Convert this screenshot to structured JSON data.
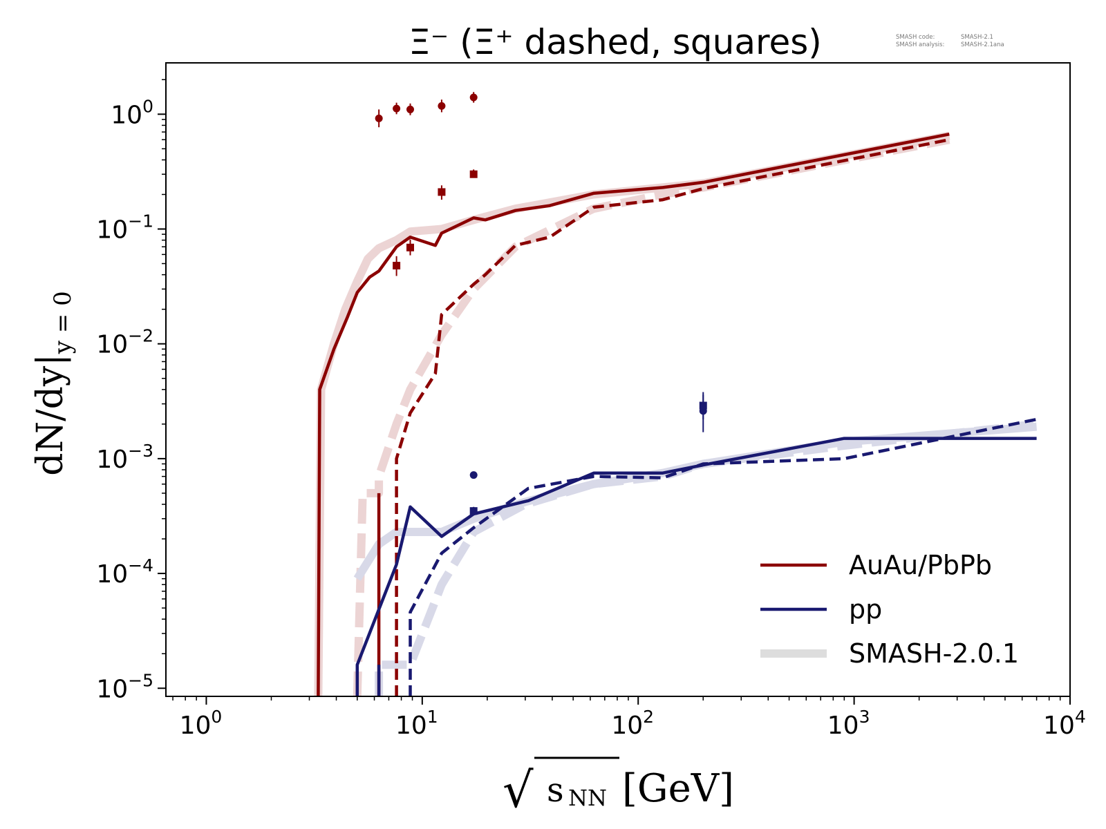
{
  "chart_data": {
    "type": "line",
    "title": "Ξ⁻ (Ξ⁺ dashed, squares)",
    "version_box": {
      "line1_label": "SMASH code:",
      "line1_value": "SMASH-2.1",
      "line2_label": "SMASH analysis:",
      "line2_value": "SMASH-2.1ana"
    },
    "xlabel": {
      "sqrt": "√",
      "base": "s",
      "sub": "NN",
      "unit": "[GeV]"
    },
    "ylabel": {
      "main": "dN/dy|",
      "sub": "y = 0"
    },
    "xscale": "log",
    "yscale": "log",
    "xlim": [
      0.65,
      10000
    ],
    "ylim": [
      8.5e-06,
      2.8
    ],
    "xticks": [
      {
        "value": 1,
        "base": "10",
        "exp": "0"
      },
      {
        "value": 10,
        "base": "10",
        "exp": "1"
      },
      {
        "value": 100,
        "base": "10",
        "exp": "2"
      },
      {
        "value": 1000,
        "base": "10",
        "exp": "3"
      },
      {
        "value": 10000,
        "base": "10",
        "exp": "4"
      }
    ],
    "yticks": [
      {
        "value": 1,
        "base": "10",
        "exp": "0"
      },
      {
        "value": 0.1,
        "base": "10",
        "exp": "−1"
      },
      {
        "value": 0.01,
        "base": "10",
        "exp": "−2"
      },
      {
        "value": 0.001,
        "base": "10",
        "exp": "−3"
      },
      {
        "value": 0.0001,
        "base": "10",
        "exp": "−4"
      },
      {
        "value": 1e-05,
        "base": "10",
        "exp": "−5"
      }
    ],
    "colors": {
      "auau": "#8b0000",
      "pp": "#191970",
      "ref_auau": "#ecd4d4",
      "ref_pp": "#d8d9e8",
      "ref_legend": "#dddddd"
    },
    "legend": {
      "position": "lower-right",
      "entries": [
        {
          "label": "AuAu/PbPb",
          "style": "auau"
        },
        {
          "label": "pp",
          "style": "pp"
        },
        {
          "label": "SMASH-2.0.1",
          "style": "ref"
        }
      ]
    },
    "series": [
      {
        "name": "SMASH-2.0.1 AuAu/PbPb Ξ⁻",
        "style": "ref_auau",
        "dashed": false,
        "x": [
          3.3,
          3.4,
          3.9,
          4.4,
          5.0,
          5.6,
          6.3,
          7.6,
          8.8,
          12.3,
          17.3,
          27,
          62,
          130,
          200,
          2760
        ],
        "y": [
          8.5e-06,
          0.004,
          0.01,
          0.02,
          0.035,
          0.055,
          0.068,
          0.08,
          0.095,
          0.1,
          0.12,
          0.15,
          0.2,
          0.23,
          0.25,
          0.65
        ]
      },
      {
        "name": "SMASH-2.0.1 AuAu/PbPb Ξ⁺",
        "style": "ref_auau",
        "dashed": true,
        "x": [
          5.0,
          5.3,
          5.6,
          6.3,
          6.3,
          7.6,
          8.8,
          12.3,
          17.3,
          27,
          62,
          130,
          200,
          2760
        ],
        "y": [
          8.5e-06,
          0.0005,
          0.0005,
          0.0005,
          0.0007,
          0.002,
          0.004,
          0.012,
          0.03,
          0.07,
          0.15,
          0.2,
          0.23,
          0.6
        ]
      },
      {
        "name": "SMASH-2.0.1 pp Ξ⁻",
        "style": "ref_pp",
        "dashed": false,
        "x": [
          5.0,
          6.3,
          7.6,
          8.8,
          12.3,
          17.3,
          30,
          62,
          130,
          200,
          900,
          7000
        ],
        "y": [
          9e-05,
          0.00018,
          0.00023,
          0.00023,
          0.00023,
          0.0003,
          0.00042,
          0.0006,
          0.00075,
          0.0009,
          0.0014,
          0.0019
        ]
      },
      {
        "name": "SMASH-2.0.1 pp Ξ⁺",
        "style": "ref_pp",
        "dashed": true,
        "x": [
          6.3,
          6.3,
          8.8,
          12.3,
          17.3,
          30,
          62,
          130,
          200,
          900,
          7000
        ],
        "y": [
          8.5e-06,
          1.6e-05,
          1.6e-05,
          8e-05,
          0.00023,
          0.0004,
          0.0006,
          0.0007,
          0.0009,
          0.0013,
          0.002
        ]
      },
      {
        "name": "AuAu/PbPb Ξ⁻",
        "style": "auau",
        "dashed": false,
        "x": [
          3.3,
          3.35,
          3.9,
          4.5,
          5.0,
          5.7,
          6.3,
          7.6,
          8.8,
          11.5,
          12.3,
          17.3,
          19.6,
          27,
          39,
          62.4,
          130,
          200,
          2760
        ],
        "y": [
          8.5e-06,
          0.004,
          0.009,
          0.017,
          0.028,
          0.038,
          0.043,
          0.07,
          0.085,
          0.072,
          0.092,
          0.125,
          0.12,
          0.145,
          0.16,
          0.205,
          0.23,
          0.255,
          0.67
        ]
      },
      {
        "name": "AuAu/PbPb Ξ⁻ spike",
        "style": "auau",
        "dashed": false,
        "x": [
          6.3,
          6.3
        ],
        "y": [
          8.5e-06,
          0.0005
        ]
      },
      {
        "name": "AuAu/PbPb Ξ⁺",
        "style": "auau",
        "dashed": true,
        "x": [
          7.6,
          7.6,
          8.8,
          11.5,
          12.3,
          17.3,
          19.6,
          27,
          39,
          62.4,
          130,
          200,
          2760
        ],
        "y": [
          8.5e-06,
          0.001,
          0.0025,
          0.0055,
          0.018,
          0.033,
          0.04,
          0.072,
          0.085,
          0.155,
          0.18,
          0.225,
          0.6
        ]
      },
      {
        "name": "pp Ξ⁻",
        "style": "pp",
        "dashed": false,
        "x": [
          5.0,
          5.0,
          7.6,
          8.8,
          12.3,
          17.3,
          31,
          62.4,
          130,
          200,
          900,
          7000
        ],
        "y": [
          8.5e-06,
          1.6e-05,
          0.00012,
          0.00038,
          0.00021,
          0.00033,
          0.00043,
          0.00075,
          0.00075,
          0.00088,
          0.0015,
          0.0015
        ]
      },
      {
        "name": "pp Ξ⁻ low spike",
        "style": "pp",
        "dashed": false,
        "x": [
          6.3,
          6.3
        ],
        "y": [
          8.5e-06,
          1.6e-05
        ]
      },
      {
        "name": "pp Ξ⁺",
        "style": "pp",
        "dashed": true,
        "x": [
          8.8,
          8.8,
          12.3,
          17.3,
          31,
          62.4,
          130,
          200,
          900,
          7000
        ],
        "y": [
          8.5e-06,
          4.6e-05,
          0.00015,
          0.00025,
          0.00055,
          0.0007,
          0.00068,
          0.0009,
          0.001,
          0.0022
        ]
      }
    ],
    "points": [
      {
        "name": "AuAu Ξ⁻ data",
        "style": "auau",
        "marker": "circle",
        "data": [
          [
            6.3,
            0.92,
            0.77,
            1.1
          ],
          [
            7.6,
            1.12,
            1.0,
            1.26
          ],
          [
            8.8,
            1.1,
            0.98,
            1.24
          ],
          [
            12.3,
            1.18,
            1.04,
            1.34
          ],
          [
            17.3,
            1.4,
            1.26,
            1.56
          ]
        ]
      },
      {
        "name": "AuAu Ξ⁺ data",
        "style": "auau",
        "marker": "square",
        "data": [
          [
            7.6,
            0.048,
            0.039,
            0.058
          ],
          [
            8.8,
            0.069,
            0.059,
            0.081
          ],
          [
            12.3,
            0.21,
            0.18,
            0.24
          ],
          [
            17.3,
            0.3,
            0.28,
            0.33
          ]
        ]
      },
      {
        "name": "pp Ξ⁻ data",
        "style": "pp",
        "marker": "circle",
        "data": [
          [
            17.3,
            0.00072,
            0.00069,
            0.00075
          ],
          [
            200,
            0.0026,
            0.0017,
            0.0038
          ]
        ]
      },
      {
        "name": "pp Ξ⁺ data",
        "style": "pp",
        "marker": "square",
        "data": [
          [
            17.3,
            0.00035,
            0.00032,
            0.00038
          ],
          [
            200,
            0.0029,
            0.0022,
            0.0036
          ]
        ]
      }
    ]
  }
}
